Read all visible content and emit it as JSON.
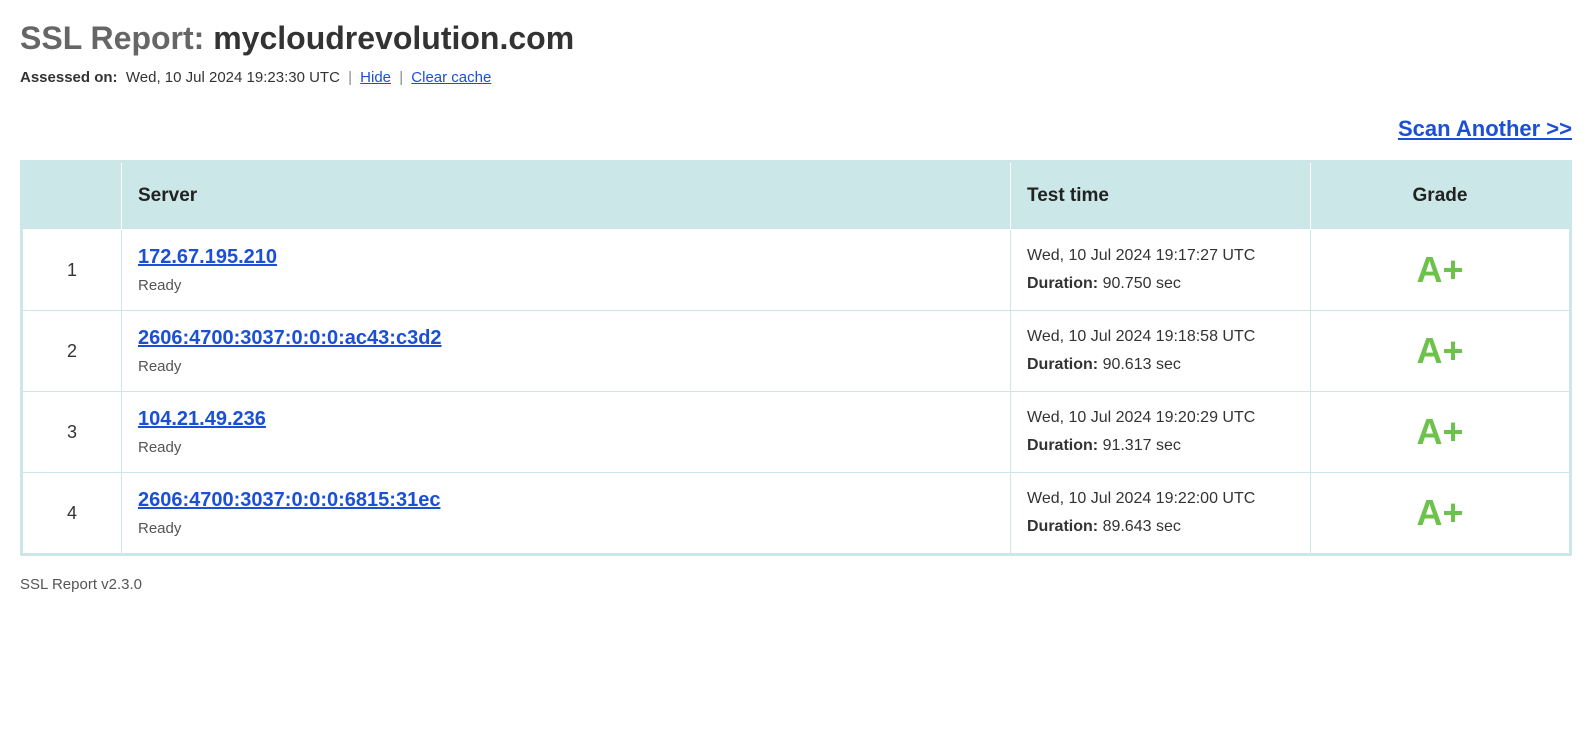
{
  "header": {
    "title_prefix": "SSL Report: ",
    "domain": "mycloudrevolution.com",
    "assessed_label": "Assessed on:",
    "assessed_date": "Wed, 10 Jul 2024 19:23:30 UTC",
    "hide_link": "Hide",
    "clear_cache_link": "Clear cache",
    "scan_another": "Scan Another >>"
  },
  "table": {
    "columns": {
      "num": "",
      "server": "Server",
      "test_time": "Test time",
      "grade": "Grade"
    },
    "header_bg": "#cce7e7",
    "border_color": "#cce7e7",
    "rows": [
      {
        "num": "1",
        "server": "172.67.195.210",
        "status": "Ready",
        "test_time": "Wed, 10 Jul 2024 19:17:27 UTC",
        "duration_label": "Duration:",
        "duration": "90.750 sec",
        "grade": "A+",
        "grade_color": "#6cc24a"
      },
      {
        "num": "2",
        "server": "2606:4700:3037:0:0:0:ac43:c3d2",
        "status": "Ready",
        "test_time": "Wed, 10 Jul 2024 19:18:58 UTC",
        "duration_label": "Duration:",
        "duration": "90.613 sec",
        "grade": "A+",
        "grade_color": "#6cc24a"
      },
      {
        "num": "3",
        "server": "104.21.49.236",
        "status": "Ready",
        "test_time": "Wed, 10 Jul 2024 19:20:29 UTC",
        "duration_label": "Duration:",
        "duration": "91.317 sec",
        "grade": "A+",
        "grade_color": "#6cc24a"
      },
      {
        "num": "4",
        "server": "2606:4700:3037:0:0:0:6815:31ec",
        "status": "Ready",
        "test_time": "Wed, 10 Jul 2024 19:22:00 UTC",
        "duration_label": "Duration:",
        "duration": "89.643 sec",
        "grade": "A+",
        "grade_color": "#6cc24a"
      }
    ]
  },
  "footer": {
    "version": "SSL Report v2.3.0"
  },
  "colors": {
    "link": "#1a4fd6",
    "grade": "#6cc24a",
    "header_bg": "#cce7e7",
    "text": "#333333",
    "title_muted": "#666666",
    "background": "#ffffff"
  }
}
